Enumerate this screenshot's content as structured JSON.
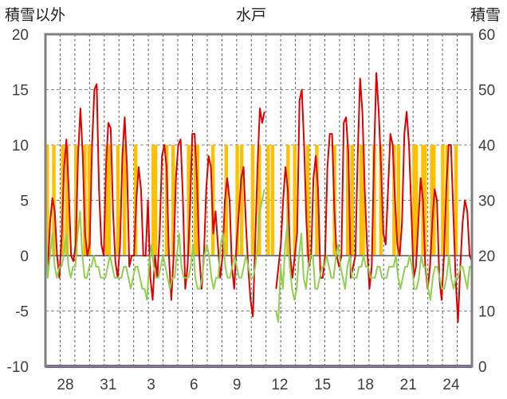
{
  "chart_data": {
    "type": "line",
    "title": "水戸",
    "ylabel_left": "積雪以外",
    "ylabel_right": "積雪",
    "ylim_left": [
      -10,
      20
    ],
    "ylim_right": [
      0,
      60
    ],
    "yticks_left": [
      "20",
      "15",
      "10",
      "5",
      "0",
      "-5",
      "-10"
    ],
    "yticks_right": [
      "60",
      "50",
      "40",
      "30",
      "20",
      "10",
      "0"
    ],
    "xticks": [
      "28",
      "31",
      "3",
      "6",
      "9",
      "12",
      "15",
      "18",
      "21",
      "24"
    ],
    "grid": true,
    "series": [
      {
        "color": "#e00000",
        "axis": "left",
        "values": [
          0.5,
          -1.5,
          3,
          5.2,
          4,
          0,
          -2,
          2,
          8,
          10.5,
          6,
          0,
          -0.5,
          1,
          9,
          13.3,
          9,
          2,
          0,
          1,
          10,
          15,
          15.5,
          6,
          1,
          0,
          8,
          12,
          11.5,
          4,
          -0.5,
          -2,
          1,
          9,
          12.5,
          8,
          -1,
          0,
          0,
          5,
          8,
          6,
          0,
          0,
          5,
          -2,
          -4,
          0,
          -2,
          2,
          9,
          10,
          8,
          0,
          -4,
          0,
          7,
          10,
          10.5,
          5,
          -3,
          -1,
          4,
          11,
          11,
          7,
          0,
          -3,
          0,
          6,
          9,
          8,
          2,
          4,
          1,
          -2,
          0,
          5,
          7,
          5,
          -1,
          -3,
          1,
          4,
          7,
          8,
          3,
          -1,
          -4,
          -5.5,
          1,
          8,
          13.3,
          12,
          13,
          null,
          null,
          null,
          null,
          -3,
          -1,
          1,
          5,
          8,
          6,
          0,
          -2,
          0,
          2,
          14,
          15,
          10,
          3,
          -1,
          0,
          7,
          9,
          6,
          -2,
          -2,
          0,
          8,
          11,
          11,
          4,
          0,
          -1,
          0,
          12,
          12.5,
          9,
          -2,
          -1,
          0,
          9,
          16,
          13,
          6,
          1,
          -3,
          -1,
          9,
          16.5,
          13,
          8,
          2,
          1,
          6,
          11,
          10,
          5,
          1,
          0,
          3,
          11,
          13,
          10,
          4,
          -2,
          -1,
          3,
          7,
          5,
          -1,
          -3,
          -1,
          3,
          6,
          5,
          -2,
          -4,
          0,
          6,
          10,
          10,
          4,
          -2,
          -6,
          -1,
          3,
          5,
          4,
          0,
          -0.5
        ]
      },
      {
        "color": "#92d050",
        "axis": "left",
        "values": [
          3,
          -2,
          0,
          2,
          -1,
          -2,
          -1,
          -1,
          0,
          2,
          -1,
          -2,
          -1,
          -1,
          2,
          4,
          0,
          -2,
          -2,
          -1,
          -1,
          0,
          -1,
          -1,
          -2,
          -2,
          -2,
          -1,
          0,
          -1,
          -2,
          -2,
          -2,
          -2,
          -1,
          -1,
          -2,
          -3,
          -2,
          -1,
          -1,
          -2,
          -3,
          -3,
          -4,
          -1,
          1,
          -1,
          -2,
          -2,
          -1,
          0,
          -1,
          -2,
          -3,
          -2,
          -2,
          0,
          2,
          -1,
          -2,
          -2,
          -2,
          -1,
          1,
          -2,
          -3,
          -3,
          -2,
          0,
          1,
          0,
          -2,
          -3,
          -2,
          -2,
          1,
          2,
          -1,
          -2,
          -2,
          -1,
          0,
          -1,
          -2,
          -2,
          -1,
          0,
          -1,
          -2,
          -2,
          -1,
          1,
          4,
          5,
          6,
          null,
          null,
          null,
          null,
          -5,
          -6,
          -1,
          -3,
          1,
          3,
          -1,
          -3,
          -4,
          -3,
          0,
          2,
          -2,
          -3,
          -1,
          0,
          0,
          -3,
          -3,
          -2,
          -1,
          -1,
          0,
          -1,
          -2,
          -2,
          0,
          1,
          -1,
          -2,
          -3,
          -1,
          0,
          -2,
          -2,
          -2,
          -1,
          -1,
          0,
          -1,
          -1,
          -2,
          -2,
          -2,
          -1,
          -1,
          -2,
          -2,
          -2,
          -1,
          -1,
          -1,
          0,
          -2,
          -3,
          -2,
          -1,
          -1,
          0,
          -1,
          -3,
          -3,
          -2,
          0,
          -1,
          -1,
          -3,
          -4,
          -2,
          -1,
          -1,
          -2,
          -3,
          -3,
          -2,
          0,
          -2,
          -3,
          -2,
          -2,
          -1,
          -1,
          -2,
          -3,
          -1,
          -1
        ]
      },
      {
        "color": "#ffc000",
        "axis": "left",
        "type": "bar",
        "values": [
          10,
          0,
          0,
          10,
          0,
          0,
          0,
          10,
          0,
          10,
          0,
          0,
          0,
          10,
          0,
          0,
          0,
          10,
          0,
          10,
          0,
          0,
          0,
          0,
          0,
          0,
          0,
          10,
          10,
          0,
          0,
          0,
          10,
          0,
          0,
          10,
          0,
          0,
          0,
          0,
          10,
          0,
          0,
          0,
          0,
          0,
          0,
          0,
          10,
          10,
          0,
          0,
          0,
          0,
          10,
          0,
          0,
          10,
          0,
          0,
          0,
          0,
          0,
          0,
          10,
          0,
          0,
          10,
          10,
          0,
          0,
          0,
          0,
          0,
          0,
          10,
          0,
          0,
          0,
          0,
          0,
          10,
          0,
          0,
          0,
          0,
          10,
          0,
          10,
          0,
          0,
          0,
          0,
          10,
          0,
          0,
          10,
          0,
          0,
          0,
          10,
          0,
          10,
          0,
          0,
          0,
          0,
          0,
          0,
          10,
          0,
          0,
          10,
          0,
          0,
          0,
          0,
          0,
          10,
          0,
          0,
          0,
          10,
          0,
          0,
          0,
          0,
          0,
          0,
          0,
          10,
          0,
          0,
          0,
          0,
          0,
          10,
          0,
          10,
          0,
          0,
          0,
          10,
          10,
          0,
          0,
          0,
          0,
          10,
          0,
          0,
          10,
          0,
          0,
          0,
          0,
          0,
          10,
          0,
          10,
          0,
          0,
          0,
          0,
          0,
          0,
          10,
          10,
          0,
          0,
          10,
          10,
          0,
          0,
          10,
          10,
          0,
          0,
          0,
          10,
          0,
          10,
          0,
          0,
          0,
          10,
          0,
          0,
          0,
          0,
          0,
          0,
          0
        ]
      },
      {
        "color": "#7030a0",
        "axis": "right",
        "values": [
          0,
          0
        ]
      }
    ]
  }
}
